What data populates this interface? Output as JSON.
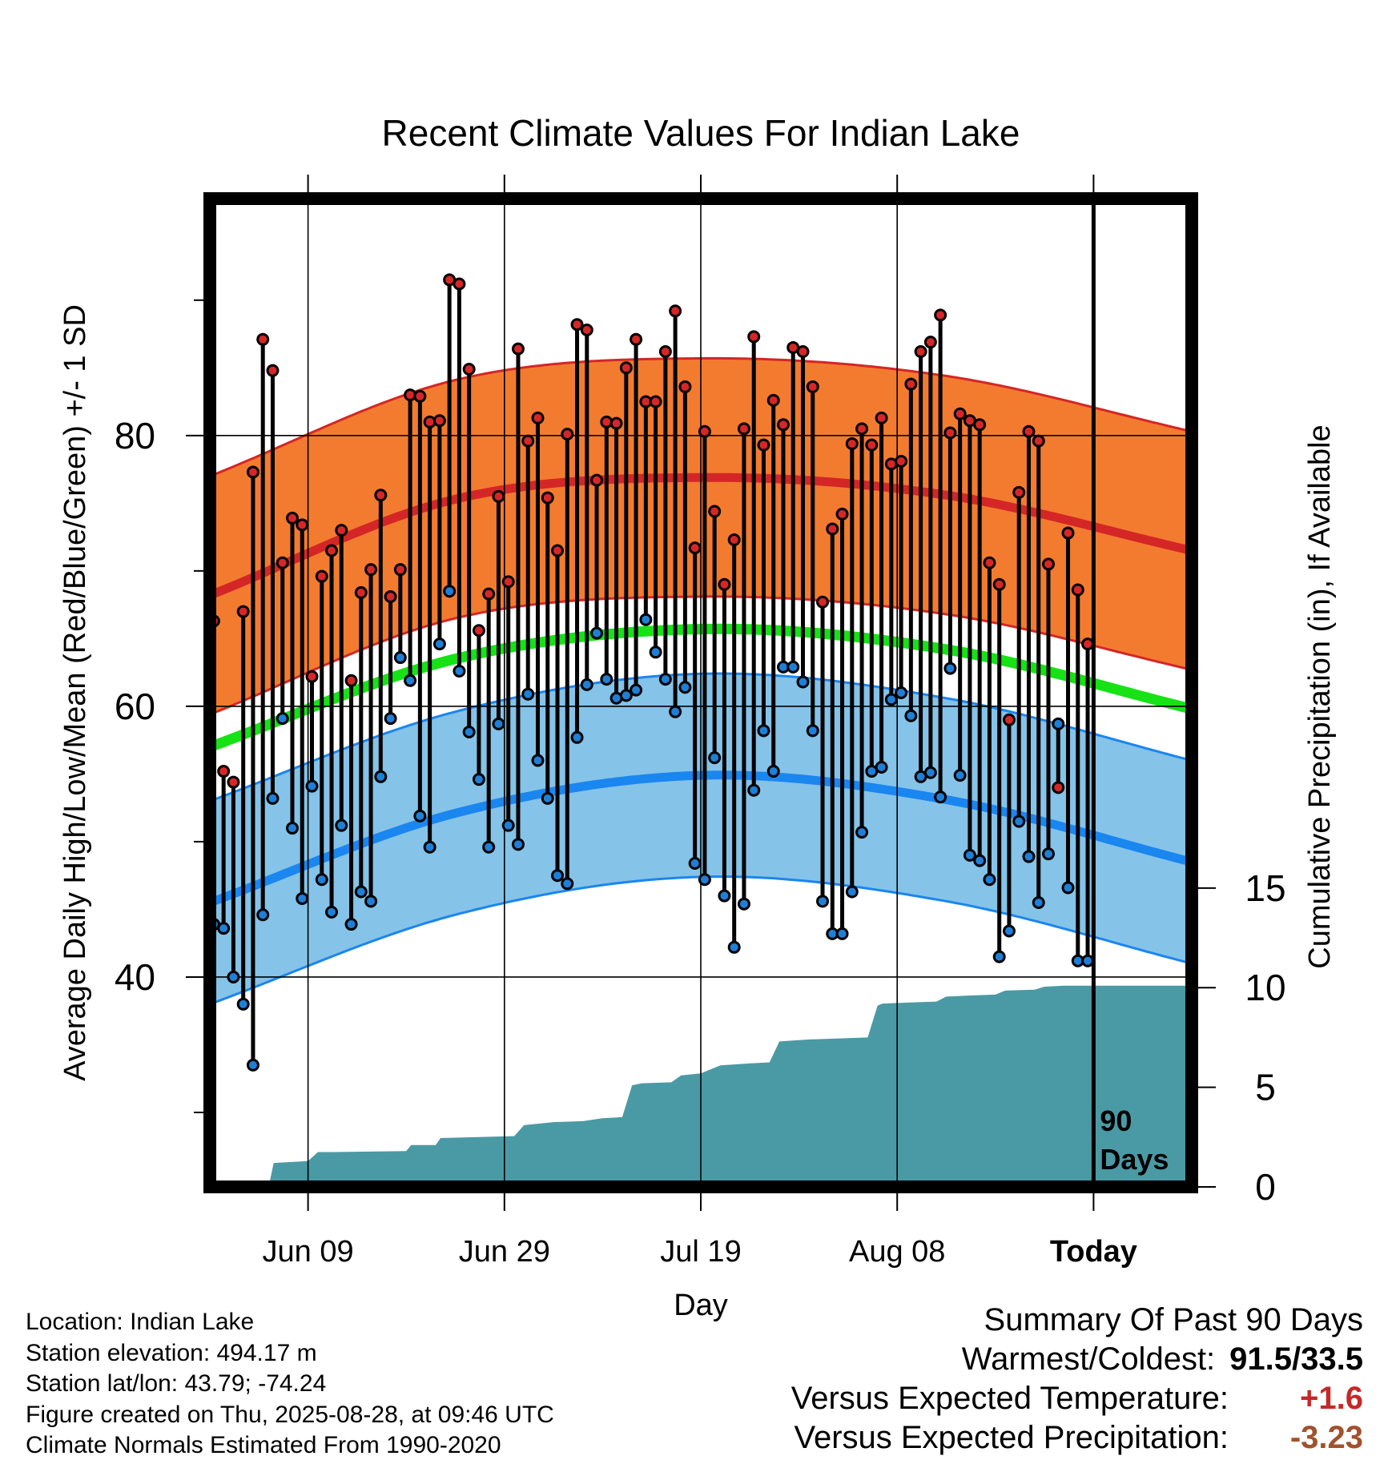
{
  "chart_data": {
    "type": "line",
    "title": "Recent Climate Values For Indian Lake",
    "xlabel": "Day",
    "ylabel_left": "Average Daily High/Low/Mean (Red/Blue/Green) +/- 1 SD",
    "ylabel_right": "Cumulative Precipitation (in), If Available",
    "x_tick_labels": [
      "Jun 09",
      "Jun 29",
      "Jul 19",
      "Aug 08",
      "Today"
    ],
    "x_tick_days": [
      10,
      30,
      50,
      70,
      90
    ],
    "x_range_days": [
      0,
      100
    ],
    "y_left_ticks": [
      40,
      60,
      80
    ],
    "y_left_minor_ticks": [
      30,
      50,
      70,
      90
    ],
    "y_left_range": [
      24.5,
      97.5
    ],
    "y_right_ticks": [
      0,
      5,
      10,
      15
    ],
    "y_right_range": [
      0,
      49.6
    ],
    "today_marker": {
      "day": 90,
      "label_line1": "90",
      "label_line2": "Days"
    },
    "normals": {
      "day": [
        0,
        25,
        50,
        75,
        100
      ],
      "high_mean": [
        68.2,
        75.3,
        76.9,
        75.6,
        71.5
      ],
      "high_sd": 8.8,
      "mean": [
        57.0,
        63.5,
        65.7,
        64.2,
        59.8
      ],
      "low_mean": [
        45.5,
        52.1,
        54.9,
        53.1,
        48.5
      ],
      "low_sd": 7.5
    },
    "series": [
      {
        "name": "High",
        "color": "#d62728",
        "values": [
          66.3,
          55.2,
          54.4,
          67.0,
          77.3,
          87.1,
          84.8,
          70.6,
          73.9,
          73.4,
          62.2,
          69.6,
          71.5,
          73.0,
          61.9,
          68.4,
          70.1,
          75.6,
          68.1,
          70.1,
          83.0,
          82.9,
          81.0,
          81.1,
          91.5,
          91.2,
          84.9,
          65.6,
          68.3,
          75.5,
          69.2,
          86.4,
          79.6,
          81.3,
          75.4,
          71.5,
          80.1,
          88.2,
          87.8,
          76.7,
          81.0,
          80.9,
          85.0,
          87.1,
          82.5,
          82.5,
          86.2,
          89.2,
          83.6,
          71.7,
          80.3,
          74.4,
          69.0,
          72.3,
          80.5,
          87.3,
          79.3,
          82.6,
          80.8,
          86.5,
          86.2,
          83.6,
          67.7,
          73.1,
          74.2,
          79.4,
          80.5,
          79.3,
          81.3,
          77.9,
          78.1,
          83.8,
          86.2,
          86.9,
          88.9,
          80.2,
          81.6,
          81.1,
          80.8,
          70.6,
          69.0,
          59.0,
          75.8,
          80.3,
          79.6,
          70.5,
          54.0,
          72.8,
          68.6,
          64.6
        ]
      },
      {
        "name": "Low",
        "color": "#1f7fd6",
        "values": [
          43.9,
          43.6,
          40.0,
          38.0,
          33.5,
          44.6,
          53.2,
          59.1,
          51.0,
          45.8,
          54.1,
          47.2,
          44.8,
          51.2,
          43.9,
          46.3,
          45.6,
          54.8,
          59.1,
          63.6,
          61.9,
          51.9,
          49.6,
          64.6,
          68.5,
          62.6,
          58.1,
          54.6,
          49.6,
          58.7,
          51.2,
          49.8,
          60.9,
          56.0,
          53.2,
          47.5,
          46.9,
          57.7,
          61.6,
          65.4,
          62.0,
          60.6,
          60.8,
          61.2,
          66.4,
          64.0,
          62.0,
          59.6,
          61.4,
          48.4,
          47.2,
          56.2,
          46.0,
          42.2,
          45.4,
          53.8,
          58.2,
          55.2,
          62.9,
          62.9,
          61.8,
          58.2,
          45.6,
          43.2,
          43.2,
          46.3,
          50.7,
          55.2,
          55.5,
          60.5,
          61.0,
          59.3,
          54.8,
          55.1,
          53.3,
          62.8,
          54.9,
          49.0,
          48.6,
          47.2,
          41.5,
          43.4,
          51.5,
          48.9,
          45.5,
          49.1,
          58.7,
          46.6,
          41.2,
          41.2
        ]
      },
      {
        "name": "Cumulative Precipitation",
        "color": "#4a9aa5",
        "points": [
          [
            0,
            0
          ],
          [
            6,
            0.05
          ],
          [
            6.5,
            1.2
          ],
          [
            10,
            1.3
          ],
          [
            11,
            1.75
          ],
          [
            12.5,
            1.75
          ],
          [
            20,
            1.8
          ],
          [
            20.5,
            2.1
          ],
          [
            23,
            2.1
          ],
          [
            23.5,
            2.45
          ],
          [
            31,
            2.55
          ],
          [
            32,
            3.1
          ],
          [
            35,
            3.25
          ],
          [
            38,
            3.3
          ],
          [
            40,
            3.45
          ],
          [
            42,
            3.5
          ],
          [
            43,
            5.1
          ],
          [
            44,
            5.2
          ],
          [
            47,
            5.25
          ],
          [
            48,
            5.6
          ],
          [
            50,
            5.7
          ],
          [
            52,
            6.1
          ],
          [
            55,
            6.2
          ],
          [
            57,
            6.25
          ],
          [
            58,
            7.3
          ],
          [
            61,
            7.4
          ],
          [
            67,
            7.5
          ],
          [
            68,
            9.1
          ],
          [
            68.5,
            9.2
          ],
          [
            71,
            9.25
          ],
          [
            74,
            9.3
          ],
          [
            75,
            9.55
          ],
          [
            77,
            9.6
          ],
          [
            80,
            9.65
          ],
          [
            81,
            9.85
          ],
          [
            84,
            9.9
          ],
          [
            85,
            10.05
          ],
          [
            87,
            10.1
          ],
          [
            100,
            10.1
          ]
        ]
      }
    ]
  },
  "info": {
    "location": "Location: Indian Lake",
    "elevation": "Station elevation: 494.17 m",
    "latlon": "Station lat/lon: 43.79; -74.24",
    "created": "Figure created on Thu, 2025-08-28, at 09:46 UTC",
    "normals": "Climate Normals Estimated From 1990-2020"
  },
  "summary": {
    "heading": "Summary Of Past 90 Days",
    "warm_cold_label": "Warmest/Coldest:",
    "warm_cold_value": "91.5/33.5",
    "temp_label": "Versus Expected Temperature:",
    "temp_value": "+1.6",
    "temp_color": "#c62828",
    "precip_label": "Versus Expected Precipitation:",
    "precip_value": "-3.23",
    "precip_color": "#a0522d"
  },
  "colors": {
    "high_band": "#f37b2f",
    "high_line": "#d42626",
    "mean_line": "#16e216",
    "low_band": "#85c3e8",
    "low_line": "#1a86f0",
    "precip": "#4a9aa5",
    "frame": "#000000"
  }
}
